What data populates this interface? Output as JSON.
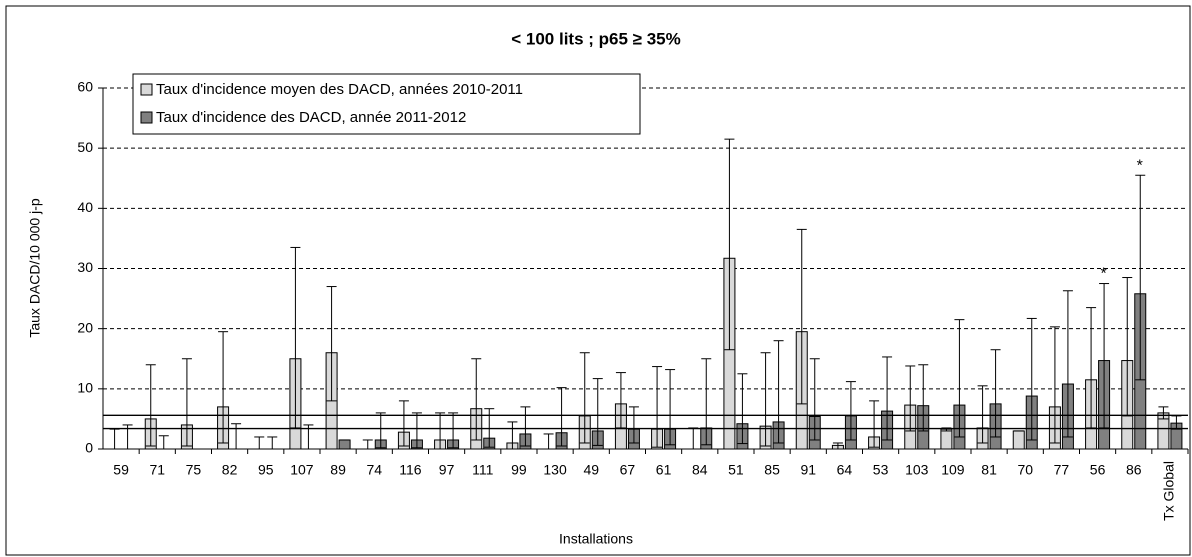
{
  "chart_data": {
    "type": "bar",
    "title": "< 100 lits ; p65 ≥ 35%",
    "y_label": "Taux DACD/10 000 j-p",
    "x_label": "Installations",
    "categories": [
      "59",
      "71",
      "75",
      "82",
      "95",
      "107",
      "89",
      "74",
      "116",
      "97",
      "111",
      "99",
      "130",
      "49",
      "67",
      "61",
      "84",
      "51",
      "85",
      "91",
      "64",
      "53",
      "103",
      "109",
      "81",
      "70",
      "77",
      "56",
      "86",
      "Tx Global"
    ],
    "series": [
      {
        "name": "Taux d'incidence moyen des DACD, années 2010-2011",
        "color": "#d9d9d9",
        "values": [
          0,
          5,
          4,
          7,
          0,
          15,
          16,
          0,
          2.8,
          1.5,
          6.7,
          1,
          0,
          5.5,
          7.5,
          3.3,
          0,
          31.7,
          3.8,
          19.5,
          0.6,
          2,
          7.3,
          3.3,
          3.5,
          3,
          7,
          11.5,
          14.7,
          6
        ],
        "upper": [
          3.3,
          14,
          15,
          19.5,
          2,
          33.5,
          27,
          1.5,
          8,
          6,
          15,
          4.5,
          2.5,
          16,
          12.7,
          13.7,
          3.5,
          51.5,
          16,
          36.5,
          1,
          8,
          13.8,
          3.5,
          10.5,
          3,
          20.3,
          23.5,
          28.5,
          7
        ],
        "lower": [
          0,
          0.5,
          0.5,
          1,
          0,
          3.5,
          8,
          0,
          0.5,
          0,
          1.5,
          0,
          0,
          1,
          3.5,
          0.3,
          0,
          16.5,
          0.5,
          7.5,
          0,
          0.3,
          3,
          3,
          1,
          3,
          1,
          3.5,
          5.5,
          5
        ]
      },
      {
        "name": "Taux d'incidence des DACD, année 2011-2012",
        "color": "#808080",
        "values": [
          0,
          0,
          0,
          0,
          0,
          0,
          1.5,
          1.5,
          1.5,
          1.5,
          1.8,
          2.5,
          2.7,
          3,
          3.3,
          3.3,
          3.5,
          4.2,
          4.5,
          5.4,
          5.5,
          6.3,
          7.2,
          7.3,
          7.5,
          8.8,
          10.8,
          14.7,
          25.8,
          4.3
        ],
        "upper": [
          4,
          2.2,
          0,
          4.2,
          2,
          4,
          1.5,
          6,
          6,
          6,
          6.7,
          7,
          10.2,
          11.7,
          7,
          13.2,
          15,
          12.5,
          18,
          15,
          11.2,
          15.3,
          14,
          21.5,
          16.5,
          21.7,
          26.3,
          27.5,
          45.5,
          5.5
        ],
        "lower": [
          0,
          0,
          0,
          0,
          0,
          0,
          1.5,
          0.2,
          0.2,
          0.2,
          0.3,
          0.5,
          0.5,
          0.6,
          1,
          0.7,
          0.7,
          0.9,
          1,
          1.5,
          1.5,
          1.5,
          3,
          2,
          2,
          1.5,
          2,
          3.5,
          11.5,
          3.3
        ]
      }
    ],
    "reference_lines": [
      5.6,
      3.4
    ],
    "markers": [
      {
        "text": "*",
        "category": "56",
        "y": 29
      },
      {
        "text": "*",
        "category": "86",
        "y": 47
      }
    ],
    "ylim": [
      0,
      60
    ],
    "yticks": [
      0,
      10,
      20,
      30,
      40,
      50,
      60
    ],
    "grid": true,
    "legend": "top-left"
  }
}
